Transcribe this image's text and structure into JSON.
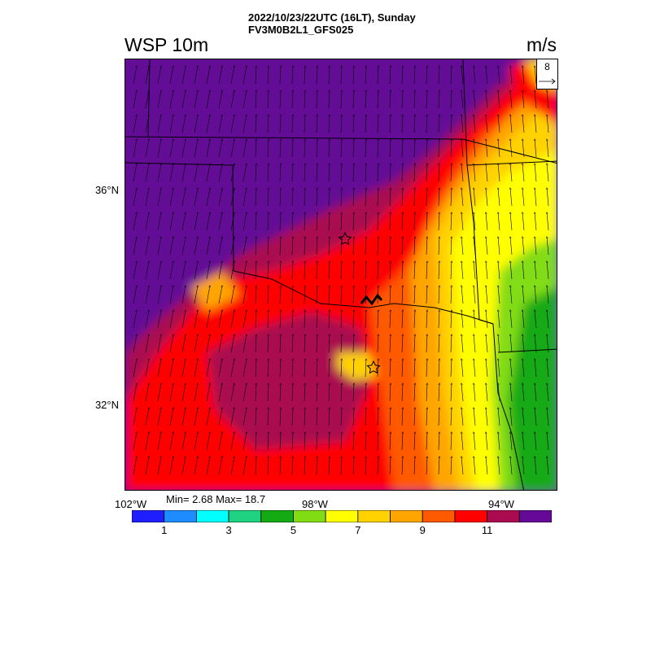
{
  "header": {
    "time_line": "2022/10/23/22UTC (16LT), Sunday",
    "model_line": "FV3M0B2L1_GFS025",
    "variable": "WSP 10m",
    "unit": "m/s"
  },
  "axes": {
    "lat_labels": [
      "36°N",
      "32°N"
    ],
    "lon_labels": [
      "102°W",
      "98°W",
      "94°W"
    ]
  },
  "stats": {
    "text": "Min= 2.68 Max= 18.7"
  },
  "reference_vector": {
    "value": "8",
    "icon": "arrow-right-icon"
  },
  "colorbar": {
    "colors": [
      "#1e1eff",
      "#1e8cff",
      "#00ffff",
      "#1ed282",
      "#14aa14",
      "#82dc14",
      "#ffff00",
      "#ffd200",
      "#ffa500",
      "#ff5a00",
      "#ff0000",
      "#aa0a50",
      "#640a96"
    ],
    "labels": [
      "1",
      "3",
      "5",
      "7",
      "9",
      "11"
    ]
  },
  "map": {
    "field": "10 m wind speed",
    "markers": [
      "star-icon",
      "star-icon"
    ],
    "vector_direction": "northward"
  }
}
